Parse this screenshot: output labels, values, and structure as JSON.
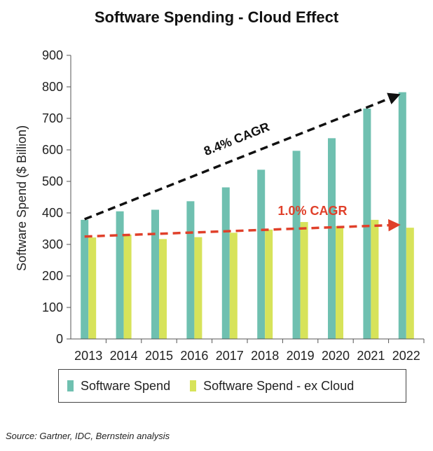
{
  "chart_data": {
    "type": "bar",
    "title": "Software Spending - Cloud Effect",
    "xlabel": "",
    "ylabel": "Software Spend ($ Billion)",
    "ylim": [
      0,
      900
    ],
    "yticks": [
      0,
      100,
      200,
      300,
      400,
      500,
      600,
      700,
      800,
      900
    ],
    "categories": [
      "2013",
      "2014",
      "2015",
      "2016",
      "2017",
      "2018",
      "2019",
      "2020",
      "2021",
      "2022"
    ],
    "series": [
      {
        "name": "Software Spend",
        "color": "#6fc0b0",
        "values": [
          378,
          405,
          410,
          437,
          481,
          537,
          597,
          637,
          731,
          783
        ]
      },
      {
        "name": "Software Spend - ex Cloud",
        "color": "#d7e35a",
        "values": [
          322,
          331,
          317,
          323,
          337,
          347,
          371,
          358,
          378,
          353
        ]
      }
    ],
    "annotations": [
      {
        "text": "8.4% CAGR",
        "color": "#111111",
        "from": {
          "x": "2013",
          "y": 380
        },
        "to": {
          "x": "2022",
          "y": 783
        }
      },
      {
        "text": "1.0% CAGR",
        "color": "#e0402a",
        "from": {
          "x": "2013",
          "y": 325
        },
        "to": {
          "x": "2022",
          "y": 362
        }
      }
    ],
    "legend_position": "bottom",
    "grid": false
  },
  "source": "Source: Gartner, IDC, Bernstein analysis"
}
